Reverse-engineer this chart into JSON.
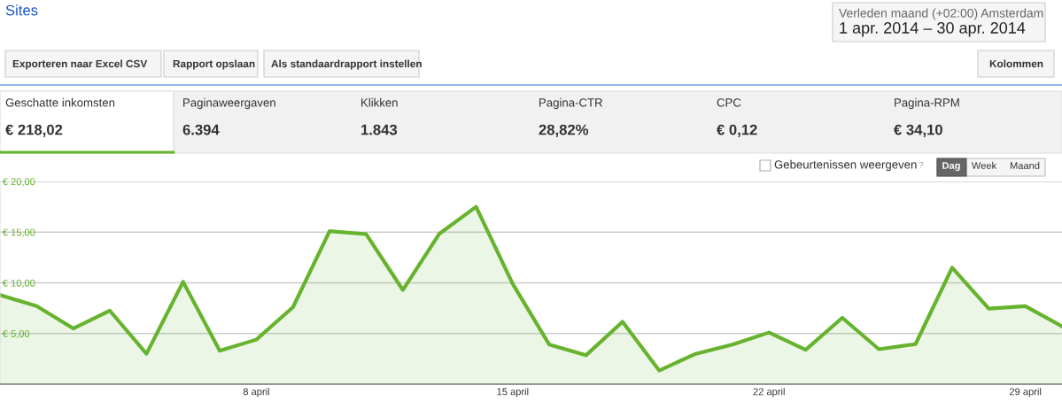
{
  "chart_data": [
    {
      "type": "other",
      "title": "Sites",
      "annotations": [
        "Verleden maand (+02:00) Amsterdam",
        "1 apr. 2014 – 30 apr. 2014",
        "Exporteren naar Excel CSV",
        "Rapport opslaan",
        "Als standaardrapport instellen",
        "Kolommen",
        "Geschatte inkomsten",
        "€ 218,02",
        "Paginaweergaven",
        "6.394",
        "Klikken",
        "1.843",
        "Pagina-CTR",
        "28,82%",
        "CPC",
        "€ 0,12",
        "Pagina-RPM",
        "€ 34,10",
        "Gebeurtenissen weergeven",
        "?",
        "Dag",
        "Week",
        "Maand"
      ]
    },
    {
      "type": "area",
      "x": [
        "2014-04-01",
        "2014-04-02",
        "2014-04-03",
        "2014-04-04",
        "2014-04-05",
        "2014-04-06",
        "2014-04-07",
        "2014-04-08",
        "2014-04-09",
        "2014-04-10",
        "2014-04-11",
        "2014-04-12",
        "2014-04-13",
        "2014-04-14",
        "2014-04-15",
        "2014-04-16",
        "2014-04-17",
        "2014-04-18",
        "2014-04-19",
        "2014-04-20",
        "2014-04-21",
        "2014-04-22",
        "2014-04-23",
        "2014-04-24",
        "2014-04-25",
        "2014-04-26",
        "2014-04-27",
        "2014-04-28",
        "2014-04-29",
        "2014-04-30"
      ],
      "series": [
        {
          "color": "#66b32e",
          "values": [
            8.8,
            7.7,
            5.5,
            7.25,
            3.0,
            10.1,
            3.3,
            4.4,
            7.6,
            15.1,
            14.8,
            9.3,
            14.85,
            17.5,
            9.9,
            3.9,
            2.85,
            6.15,
            1.35,
            3.0,
            3.9,
            5.1,
            3.4,
            6.55,
            3.45,
            3.95,
            11.5,
            7.45,
            7.7,
            5.7
          ]
        }
      ],
      "xlim": [
        "2014-04-01",
        "2014-04-30"
      ],
      "xticks": [
        {
          "value": "2014-04-08",
          "label": "8 april"
        },
        {
          "value": "2014-04-15",
          "label": "15 april"
        },
        {
          "value": "2014-04-22",
          "label": "22 april"
        },
        {
          "value": "2014-04-29",
          "label": "29 april"
        }
      ],
      "ylim": [
        0,
        20
      ],
      "yticks": [
        {
          "value": 5,
          "label": "€ 5,00"
        },
        {
          "value": 10,
          "label": "€ 10,00"
        },
        {
          "value": 15,
          "label": "€ 15,00"
        },
        {
          "value": 20,
          "label": "€ 20,00"
        }
      ],
      "grid": "y"
    }
  ]
}
